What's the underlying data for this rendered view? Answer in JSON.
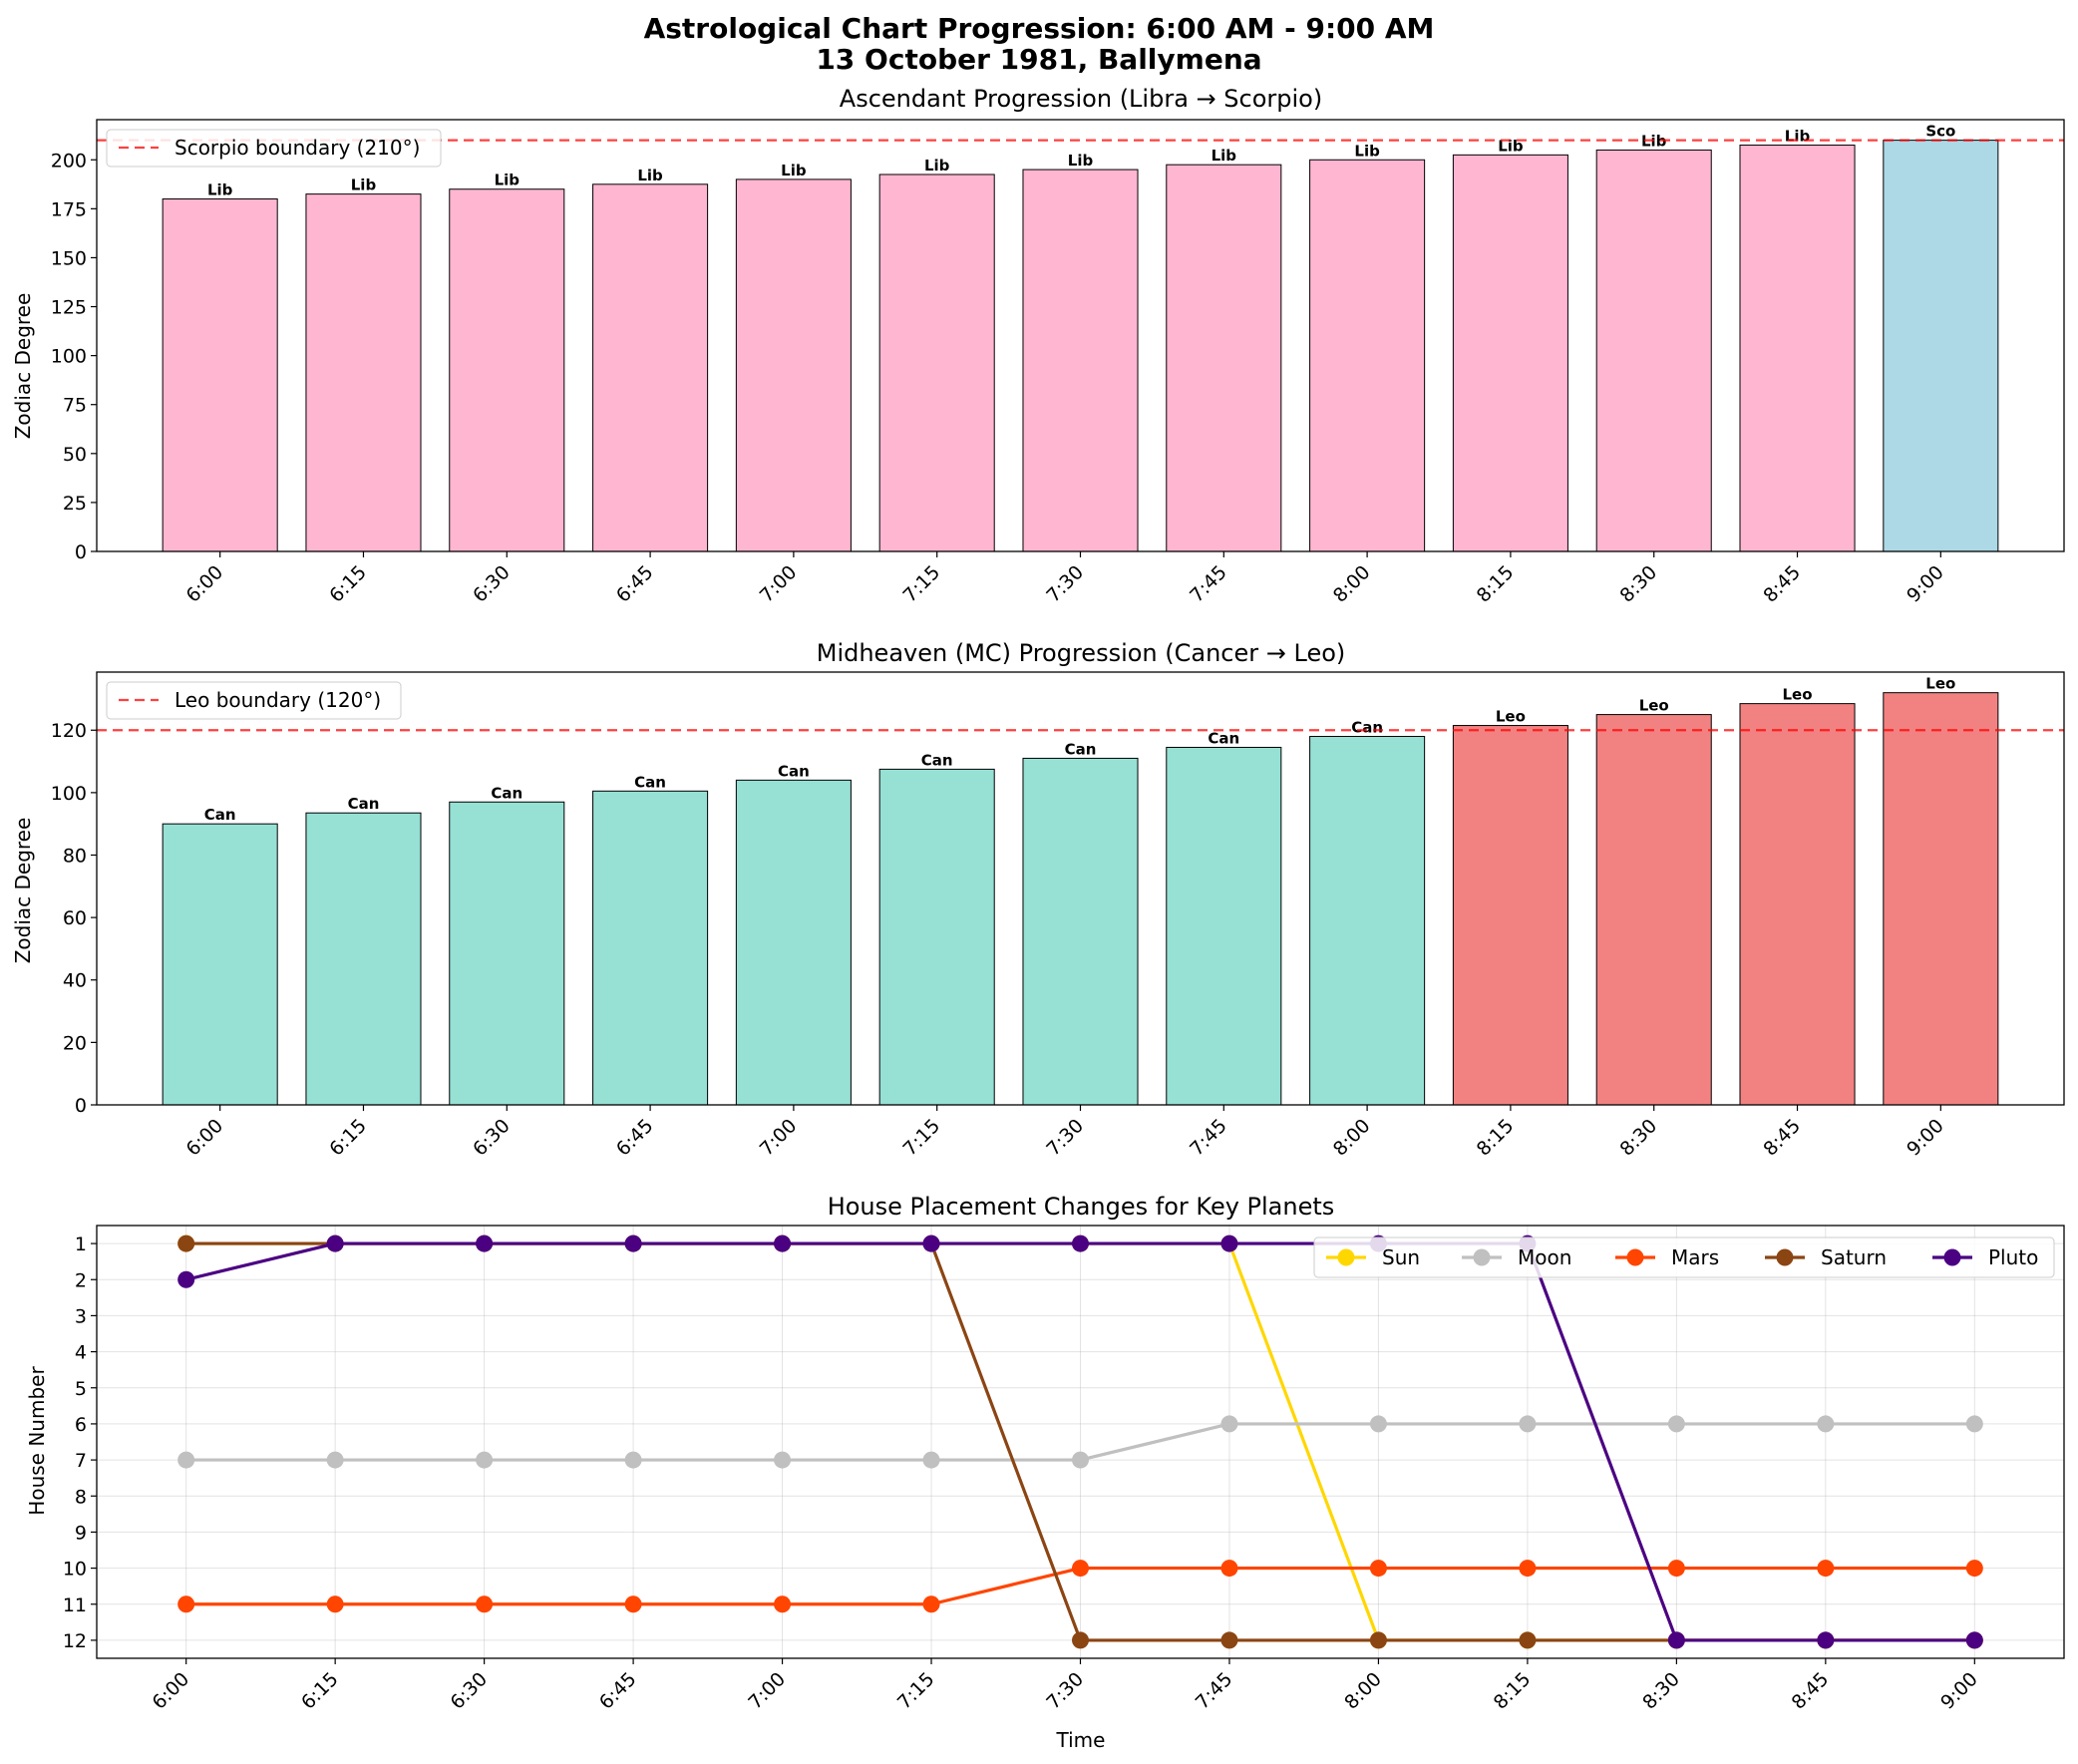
{
  "figure": {
    "title_line1": "Astrological Chart Progression: 6:00 AM - 9:00 AM",
    "title_line2": "13 October 1981, Ballymena"
  },
  "chart_data": [
    {
      "type": "bar",
      "title": "Ascendant Progression (Libra → Scorpio)",
      "xlabel": "",
      "ylabel": "Zodiac Degree",
      "categories": [
        "6:00",
        "6:15",
        "6:30",
        "6:45",
        "7:00",
        "7:15",
        "7:30",
        "7:45",
        "8:00",
        "8:15",
        "8:30",
        "8:45",
        "9:00"
      ],
      "values": [
        180,
        182.5,
        185,
        187.5,
        190,
        192.5,
        195,
        197.5,
        200,
        202.5,
        205,
        207.5,
        210
      ],
      "bar_labels": [
        "Lib",
        "Lib",
        "Lib",
        "Lib",
        "Lib",
        "Lib",
        "Lib",
        "Lib",
        "Lib",
        "Lib",
        "Lib",
        "Lib",
        "Sco"
      ],
      "bar_colors": [
        "#FFB6D1",
        "#FFB6D1",
        "#FFB6D1",
        "#FFB6D1",
        "#FFB6D1",
        "#FFB6D1",
        "#FFB6D1",
        "#FFB6D1",
        "#FFB6D1",
        "#FFB6D1",
        "#FFB6D1",
        "#FFB6D1",
        "#ADD8E6"
      ],
      "yticks": [
        0,
        25,
        50,
        75,
        100,
        125,
        150,
        175,
        200
      ],
      "ylim": [
        0,
        220.5
      ],
      "boundary": {
        "value": 210,
        "label": "Scorpio boundary (210°)",
        "color": "#FF0000"
      },
      "legend_position": "upper-left",
      "grid": false
    },
    {
      "type": "bar",
      "title": "Midheaven (MC) Progression (Cancer → Leo)",
      "xlabel": "",
      "ylabel": "Zodiac Degree",
      "categories": [
        "6:00",
        "6:15",
        "6:30",
        "6:45",
        "7:00",
        "7:15",
        "7:30",
        "7:45",
        "8:00",
        "8:15",
        "8:30",
        "8:45",
        "9:00"
      ],
      "values": [
        90,
        93.5,
        97,
        100.5,
        104,
        107.5,
        111,
        114.5,
        118,
        121.5,
        125,
        128.5,
        132
      ],
      "bar_labels": [
        "Can",
        "Can",
        "Can",
        "Can",
        "Can",
        "Can",
        "Can",
        "Can",
        "Can",
        "Leo",
        "Leo",
        "Leo",
        "Leo"
      ],
      "bar_colors": [
        "#96E0D4",
        "#96E0D4",
        "#96E0D4",
        "#96E0D4",
        "#96E0D4",
        "#96E0D4",
        "#96E0D4",
        "#96E0D4",
        "#96E0D4",
        "#F28282",
        "#F28282",
        "#F28282",
        "#F28282"
      ],
      "yticks": [
        0,
        20,
        40,
        60,
        80,
        100,
        120
      ],
      "ylim": [
        0,
        138.6
      ],
      "boundary": {
        "value": 120,
        "label": "Leo boundary (120°)",
        "color": "#FF0000"
      },
      "legend_position": "upper-left",
      "grid": false
    },
    {
      "type": "line",
      "title": "House Placement Changes for Key Planets",
      "xlabel": "Time",
      "ylabel": "House Number",
      "categories": [
        "6:00",
        "6:15",
        "6:30",
        "6:45",
        "7:00",
        "7:15",
        "7:30",
        "7:45",
        "8:00",
        "8:15",
        "8:30",
        "8:45",
        "9:00"
      ],
      "yticks": [
        1,
        2,
        3,
        4,
        5,
        6,
        7,
        8,
        9,
        10,
        11,
        12
      ],
      "ylim": [
        12.5,
        0.5
      ],
      "y_inverted": true,
      "grid": true,
      "legend_position": "upper-right",
      "series": [
        {
          "name": "Sun",
          "color": "#FFD700",
          "values": [
            1,
            1,
            1,
            1,
            1,
            1,
            1,
            1,
            12,
            12,
            12,
            12,
            12
          ]
        },
        {
          "name": "Moon",
          "color": "#C0C0C0",
          "values": [
            7,
            7,
            7,
            7,
            7,
            7,
            7,
            6,
            6,
            6,
            6,
            6,
            6
          ]
        },
        {
          "name": "Mars",
          "color": "#FF4500",
          "values": [
            11,
            11,
            11,
            11,
            11,
            11,
            10,
            10,
            10,
            10,
            10,
            10,
            10
          ]
        },
        {
          "name": "Saturn",
          "color": "#8B4513",
          "values": [
            1,
            1,
            1,
            1,
            1,
            1,
            12,
            12,
            12,
            12,
            12,
            12,
            12
          ]
        },
        {
          "name": "Pluto",
          "color": "#4B0082",
          "values": [
            2,
            1,
            1,
            1,
            1,
            1,
            1,
            1,
            1,
            1,
            12,
            12,
            12
          ]
        }
      ]
    }
  ]
}
